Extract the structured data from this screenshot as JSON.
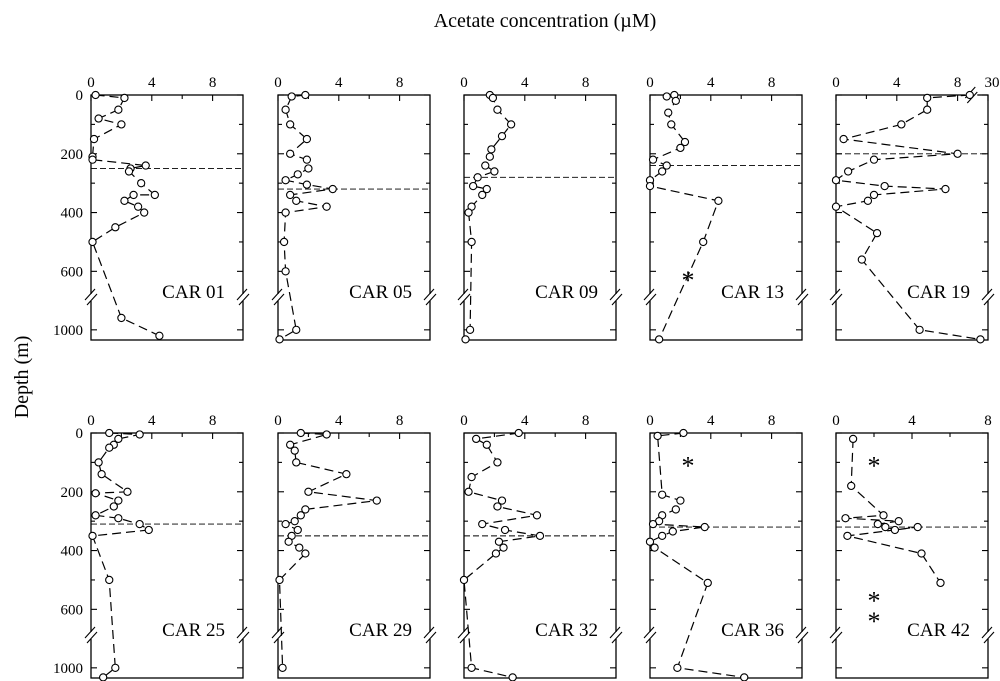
{
  "figure": {
    "x_label": "Acetate concentration (µM)",
    "y_label": "Depth (m)",
    "no_data_marker": "*"
  },
  "chart_data": [
    {
      "type": "scatter",
      "title": "CAR 01",
      "xlim": [
        0,
        10
      ],
      "x_ticks": [
        "0",
        "4",
        "8"
      ],
      "axis_break": "none",
      "ylim": [
        0,
        1100
      ],
      "y_ticks": [
        "0",
        "200",
        "400",
        "600",
        "1000"
      ],
      "y_break": [
        660,
        800
      ],
      "thermocline_depth": 250,
      "star_depths": [],
      "points": [
        {
          "x": 0.3,
          "y": 0
        },
        {
          "x": 2.2,
          "y": 10
        },
        {
          "x": 1.8,
          "y": 50
        },
        {
          "x": 0.5,
          "y": 80
        },
        {
          "x": 2.0,
          "y": 100
        },
        {
          "x": 0.2,
          "y": 150
        },
        {
          "x": 0.1,
          "y": 210
        },
        {
          "x": 0.1,
          "y": 220
        },
        {
          "x": 3.6,
          "y": 240
        },
        {
          "x": 2.6,
          "y": 250
        },
        {
          "x": 2.5,
          "y": 260
        },
        {
          "x": 3.3,
          "y": 300
        },
        {
          "x": 4.2,
          "y": 340
        },
        {
          "x": 2.8,
          "y": 340
        },
        {
          "x": 2.2,
          "y": 360
        },
        {
          "x": 3.1,
          "y": 380
        },
        {
          "x": 3.5,
          "y": 400
        },
        {
          "x": 1.6,
          "y": 450
        },
        {
          "x": 0.1,
          "y": 500
        },
        {
          "x": 2.0,
          "y": 900
        },
        {
          "x": 4.5,
          "y": 1050
        }
      ]
    },
    {
      "type": "scatter",
      "title": "CAR 05",
      "xlim": [
        0,
        10
      ],
      "x_ticks": [
        "0",
        "4",
        "8"
      ],
      "axis_break": "none",
      "ylim": [
        0,
        1100
      ],
      "y_ticks": [
        "0",
        "200",
        "400",
        "600",
        "1000"
      ],
      "y_break": [
        660,
        800
      ],
      "thermocline_depth": 320,
      "star_depths": [],
      "points": [
        {
          "x": 1.8,
          "y": 0
        },
        {
          "x": 0.9,
          "y": 5
        },
        {
          "x": 0.5,
          "y": 50
        },
        {
          "x": 0.8,
          "y": 100
        },
        {
          "x": 1.9,
          "y": 150
        },
        {
          "x": 0.8,
          "y": 200
        },
        {
          "x": 1.9,
          "y": 220
        },
        {
          "x": 2.0,
          "y": 250
        },
        {
          "x": 1.3,
          "y": 270
        },
        {
          "x": 0.5,
          "y": 290
        },
        {
          "x": 1.9,
          "y": 305
        },
        {
          "x": 3.6,
          "y": 320
        },
        {
          "x": 0.8,
          "y": 340
        },
        {
          "x": 1.2,
          "y": 360
        },
        {
          "x": 3.2,
          "y": 380
        },
        {
          "x": 0.5,
          "y": 400
        },
        {
          "x": 0.4,
          "y": 500
        },
        {
          "x": 0.5,
          "y": 600
        },
        {
          "x": 1.2,
          "y": 1000
        },
        {
          "x": 0.1,
          "y": 1080
        }
      ]
    },
    {
      "type": "scatter",
      "title": "CAR 09",
      "xlim": [
        0,
        10
      ],
      "x_ticks": [
        "0",
        "4",
        "8"
      ],
      "axis_break": "none",
      "ylim": [
        0,
        1100
      ],
      "y_ticks": [
        "0",
        "200",
        "400",
        "600",
        "1000"
      ],
      "y_break": [
        660,
        800
      ],
      "thermocline_depth": 280,
      "star_depths": [],
      "points": [
        {
          "x": 1.7,
          "y": 0
        },
        {
          "x": 1.9,
          "y": 10
        },
        {
          "x": 2.2,
          "y": 50
        },
        {
          "x": 3.1,
          "y": 100
        },
        {
          "x": 2.5,
          "y": 140
        },
        {
          "x": 1.8,
          "y": 185
        },
        {
          "x": 1.7,
          "y": 210
        },
        {
          "x": 1.4,
          "y": 240
        },
        {
          "x": 2.0,
          "y": 260
        },
        {
          "x": 0.9,
          "y": 280
        },
        {
          "x": 0.6,
          "y": 310
        },
        {
          "x": 1.5,
          "y": 320
        },
        {
          "x": 1.2,
          "y": 340
        },
        {
          "x": 0.5,
          "y": 380
        },
        {
          "x": 0.3,
          "y": 400
        },
        {
          "x": 0.5,
          "y": 500
        },
        {
          "x": 0.4,
          "y": 1000
        },
        {
          "x": 0.1,
          "y": 1080
        }
      ]
    },
    {
      "type": "scatter",
      "title": "CAR 13",
      "xlim": [
        0,
        10
      ],
      "x_ticks": [
        "0",
        "4",
        "8"
      ],
      "axis_break": "none",
      "ylim": [
        0,
        1100
      ],
      "y_ticks": [
        "0",
        "200",
        "400",
        "600",
        "1000"
      ],
      "y_break": [
        660,
        800
      ],
      "thermocline_depth": 240,
      "star_depths": [
        630
      ],
      "points": [
        {
          "x": 1.6,
          "y": 0
        },
        {
          "x": 1.1,
          "y": 5
        },
        {
          "x": 1.7,
          "y": 20
        },
        {
          "x": 1.2,
          "y": 60
        },
        {
          "x": 1.4,
          "y": 100
        },
        {
          "x": 2.3,
          "y": 160
        },
        {
          "x": 2.0,
          "y": 180
        },
        {
          "x": 0.2,
          "y": 220
        },
        {
          "x": 1.1,
          "y": 240
        },
        {
          "x": 0.8,
          "y": 260
        },
        {
          "x": 0.0,
          "y": 290
        },
        {
          "x": 0.0,
          "y": 310
        },
        {
          "x": 4.5,
          "y": 360
        },
        {
          "x": 3.5,
          "y": 500
        },
        {
          "x": 0.6,
          "y": 1080
        }
      ]
    },
    {
      "type": "scatter",
      "title": "CAR 19",
      "xlim": [
        0,
        10
      ],
      "x_ticks": [
        "0",
        "4",
        "8",
        "30"
      ],
      "axis_break": "8–30",
      "ylim": [
        0,
        1100
      ],
      "y_ticks": [
        "0",
        "200",
        "400",
        "600",
        "1000"
      ],
      "y_break": [
        660,
        800
      ],
      "thermocline_depth": 200,
      "star_depths": [],
      "points": [
        {
          "x": 8.8,
          "y": 0
        },
        {
          "x": 6.0,
          "y": 10
        },
        {
          "x": 6.0,
          "y": 50
        },
        {
          "x": 4.3,
          "y": 100
        },
        {
          "x": 0.5,
          "y": 150
        },
        {
          "x": 8.0,
          "y": 200
        },
        {
          "x": 2.5,
          "y": 220
        },
        {
          "x": 0.8,
          "y": 260
        },
        {
          "x": 0.0,
          "y": 290
        },
        {
          "x": 3.2,
          "y": 310
        },
        {
          "x": 7.2,
          "y": 320
        },
        {
          "x": 2.5,
          "y": 340
        },
        {
          "x": 2.1,
          "y": 360
        },
        {
          "x": 0.0,
          "y": 380
        },
        {
          "x": 2.7,
          "y": 470
        },
        {
          "x": 1.7,
          "y": 560
        },
        {
          "x": 5.5,
          "y": 1000
        },
        {
          "x": 9.5,
          "y": 1080
        }
      ]
    },
    {
      "type": "scatter",
      "title": "CAR 25",
      "xlim": [
        0,
        10
      ],
      "x_ticks": [
        "0",
        "4",
        "8"
      ],
      "axis_break": "none",
      "ylim": [
        0,
        1100
      ],
      "y_ticks": [
        "0",
        "200",
        "400",
        "600",
        "1000"
      ],
      "y_break": [
        660,
        800
      ],
      "thermocline_depth": 310,
      "star_depths": [],
      "points": [
        {
          "x": 1.2,
          "y": 0
        },
        {
          "x": 3.2,
          "y": 5
        },
        {
          "x": 1.8,
          "y": 20
        },
        {
          "x": 1.5,
          "y": 40
        },
        {
          "x": 1.2,
          "y": 50
        },
        {
          "x": 0.5,
          "y": 100
        },
        {
          "x": 0.7,
          "y": 140
        },
        {
          "x": 2.4,
          "y": 200
        },
        {
          "x": 0.3,
          "y": 205
        },
        {
          "x": 1.8,
          "y": 230
        },
        {
          "x": 1.5,
          "y": 250
        },
        {
          "x": 0.3,
          "y": 280
        },
        {
          "x": 1.8,
          "y": 290
        },
        {
          "x": 3.2,
          "y": 310
        },
        {
          "x": 3.8,
          "y": 330
        },
        {
          "x": 0.1,
          "y": 350
        },
        {
          "x": 1.2,
          "y": 500
        },
        {
          "x": 1.6,
          "y": 1000
        },
        {
          "x": 0.8,
          "y": 1080
        }
      ]
    },
    {
      "type": "scatter",
      "title": "CAR 29",
      "xlim": [
        0,
        10
      ],
      "x_ticks": [
        "0",
        "4",
        "8"
      ],
      "axis_break": "none",
      "ylim": [
        0,
        1100
      ],
      "y_ticks": [
        "0",
        "200",
        "400",
        "600",
        "1000"
      ],
      "y_break": [
        660,
        800
      ],
      "thermocline_depth": 350,
      "star_depths": [],
      "points": [
        {
          "x": 1.5,
          "y": 0
        },
        {
          "x": 3.2,
          "y": 5
        },
        {
          "x": 0.8,
          "y": 40
        },
        {
          "x": 1.1,
          "y": 60
        },
        {
          "x": 1.2,
          "y": 100
        },
        {
          "x": 4.5,
          "y": 140
        },
        {
          "x": 2.0,
          "y": 200
        },
        {
          "x": 6.5,
          "y": 230
        },
        {
          "x": 1.8,
          "y": 260
        },
        {
          "x": 1.5,
          "y": 280
        },
        {
          "x": 1.1,
          "y": 300
        },
        {
          "x": 0.5,
          "y": 310
        },
        {
          "x": 1.3,
          "y": 330
        },
        {
          "x": 0.9,
          "y": 350
        },
        {
          "x": 0.7,
          "y": 370
        },
        {
          "x": 1.4,
          "y": 390
        },
        {
          "x": 1.8,
          "y": 410
        },
        {
          "x": 0.1,
          "y": 500
        },
        {
          "x": 0.3,
          "y": 1000
        }
      ]
    },
    {
      "type": "scatter",
      "title": "CAR 32",
      "xlim": [
        0,
        10
      ],
      "x_ticks": [
        "0",
        "4",
        "8"
      ],
      "axis_break": "none",
      "ylim": [
        0,
        1100
      ],
      "y_ticks": [
        "0",
        "200",
        "400",
        "600",
        "1000"
      ],
      "y_break": [
        660,
        800
      ],
      "thermocline_depth": 350,
      "star_depths": [],
      "points": [
        {
          "x": 3.6,
          "y": 0
        },
        {
          "x": 0.8,
          "y": 20
        },
        {
          "x": 1.5,
          "y": 40
        },
        {
          "x": 2.2,
          "y": 100
        },
        {
          "x": 0.5,
          "y": 150
        },
        {
          "x": 0.3,
          "y": 200
        },
        {
          "x": 2.5,
          "y": 230
        },
        {
          "x": 2.2,
          "y": 250
        },
        {
          "x": 4.8,
          "y": 280
        },
        {
          "x": 1.2,
          "y": 310
        },
        {
          "x": 2.7,
          "y": 330
        },
        {
          "x": 5.0,
          "y": 350
        },
        {
          "x": 2.3,
          "y": 370
        },
        {
          "x": 2.6,
          "y": 390
        },
        {
          "x": 2.1,
          "y": 410
        },
        {
          "x": 0.0,
          "y": 500
        },
        {
          "x": 0.5,
          "y": 1000
        },
        {
          "x": 3.2,
          "y": 1080
        }
      ]
    },
    {
      "type": "scatter",
      "title": "CAR 36",
      "xlim": [
        0,
        10
      ],
      "x_ticks": [
        "0",
        "4",
        "8"
      ],
      "axis_break": "none",
      "ylim": [
        0,
        1100
      ],
      "y_ticks": [
        "0",
        "200",
        "400",
        "600",
        "1000"
      ],
      "y_break": [
        660,
        800
      ],
      "thermocline_depth": 320,
      "star_depths": [
        110
      ],
      "points": [
        {
          "x": 2.2,
          "y": 0
        },
        {
          "x": 0.5,
          "y": 10
        },
        {
          "x": 0.8,
          "y": 210
        },
        {
          "x": 2.0,
          "y": 230
        },
        {
          "x": 1.7,
          "y": 260
        },
        {
          "x": 0.8,
          "y": 280
        },
        {
          "x": 0.6,
          "y": 300
        },
        {
          "x": 0.2,
          "y": 310
        },
        {
          "x": 3.6,
          "y": 320
        },
        {
          "x": 1.5,
          "y": 335
        },
        {
          "x": 0.8,
          "y": 350
        },
        {
          "x": 0.0,
          "y": 370
        },
        {
          "x": 0.3,
          "y": 390
        },
        {
          "x": 3.8,
          "y": 510
        },
        {
          "x": 1.8,
          "y": 1000
        },
        {
          "x": 6.2,
          "y": 1080
        }
      ]
    },
    {
      "type": "scatter",
      "title": "CAR 42",
      "xlim": [
        0,
        8
      ],
      "x_ticks": [
        "0",
        "4",
        "8"
      ],
      "axis_break": "none",
      "ylim": [
        0,
        1100
      ],
      "y_ticks": [
        "0",
        "200",
        "400",
        "600",
        "1000"
      ],
      "y_break": [
        660,
        800
      ],
      "thermocline_depth": 320,
      "star_depths": [
        110,
        570,
        640
      ],
      "points": [
        {
          "x": 0.9,
          "y": 20
        },
        {
          "x": 0.8,
          "y": 180
        },
        {
          "x": 2.5,
          "y": 280
        },
        {
          "x": 0.5,
          "y": 290
        },
        {
          "x": 3.3,
          "y": 300
        },
        {
          "x": 2.2,
          "y": 310
        },
        {
          "x": 2.6,
          "y": 320
        },
        {
          "x": 3.1,
          "y": 330
        },
        {
          "x": 4.3,
          "y": 320
        },
        {
          "x": 0.6,
          "y": 350
        },
        {
          "x": 4.5,
          "y": 410
        },
        {
          "x": 5.5,
          "y": 510
        }
      ]
    }
  ]
}
